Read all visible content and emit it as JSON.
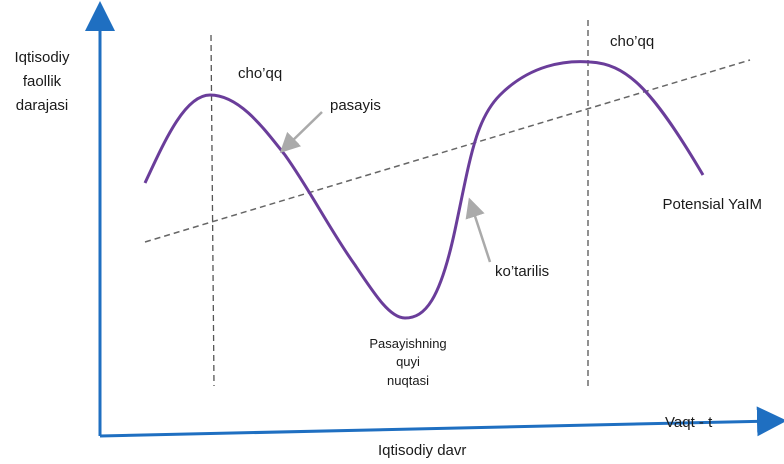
{
  "y_axis_label": [
    "Iqtisodiy",
    "faollik",
    "darajasi"
  ],
  "x_axis_label": "Iqtisodiy davr",
  "x_axis_end_label": "Vaqt - t",
  "labels": {
    "peak_1": "cho’qq",
    "peak_2": "cho’qq",
    "decline": "pasayis",
    "rise": "ko’tarilis",
    "trend": "Potensial YaIM"
  },
  "trough_label": [
    "Pasayishning",
    "quyi",
    "nuqtasi"
  ]
}
